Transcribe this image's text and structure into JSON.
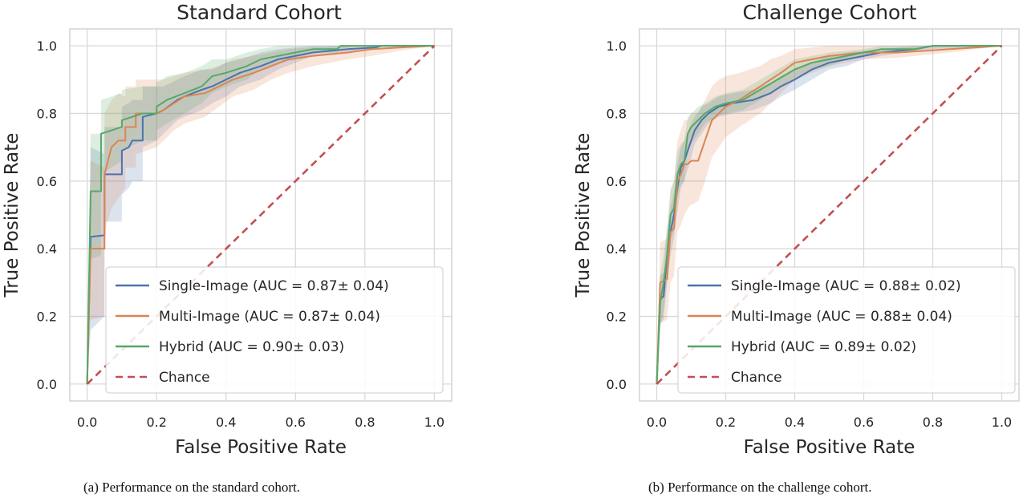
{
  "colors": {
    "single_image": "#4c72b0",
    "multi_image": "#dd8452",
    "hybrid": "#55a868",
    "chance": "#c44e52",
    "grid": "#d9d9d9",
    "frame": "#cccccc"
  },
  "captions": {
    "a": "(a) Performance on the standard cohort.",
    "b": "(b) Performance on the challenge cohort."
  },
  "chart_data": [
    {
      "type": "line",
      "title": "Standard Cohort",
      "xlabel": "False Positive Rate",
      "ylabel": "True Positive Rate",
      "xlim": [
        -0.05,
        1.05
      ],
      "ylim": [
        -0.05,
        1.05
      ],
      "xticks": [
        "0.0",
        "0.2",
        "0.4",
        "0.6",
        "0.8",
        "1.0"
      ],
      "yticks": [
        "0.0",
        "0.2",
        "0.4",
        "0.6",
        "0.8",
        "1.0"
      ],
      "grid": true,
      "legend_position": "lower right",
      "legend": [
        "Single-Image (AUC = 0.87± 0.04)",
        "Multi-Image (AUC = 0.87± 0.04)",
        "Hybrid (AUC = 0.90± 0.03)",
        "Chance"
      ],
      "series": [
        {
          "name": "Single-Image (AUC = 0.87± 0.04)",
          "style": "solid",
          "x": [
            0,
            0.01,
            0.01,
            0.05,
            0.05,
            0.1,
            0.1,
            0.12,
            0.13,
            0.16,
            0.16,
            0.2,
            0.22,
            0.26,
            0.28,
            0.33,
            0.36,
            0.4,
            0.44,
            0.5,
            0.55,
            0.6,
            0.65,
            0.75,
            0.83,
            0.85,
            1.0
          ],
          "y": [
            0,
            0.43,
            0.435,
            0.44,
            0.62,
            0.62,
            0.69,
            0.7,
            0.72,
            0.72,
            0.79,
            0.8,
            0.81,
            0.84,
            0.85,
            0.87,
            0.88,
            0.9,
            0.92,
            0.94,
            0.96,
            0.97,
            0.98,
            0.99,
            0.995,
            1.0,
            1.0
          ],
          "band_lower": [
            0,
            0.16,
            0.16,
            0.2,
            0.48,
            0.48,
            0.56,
            0.58,
            0.6,
            0.6,
            0.7,
            0.72,
            0.74,
            0.78,
            0.79,
            0.81,
            0.83,
            0.85,
            0.88,
            0.9,
            0.93,
            0.95,
            0.97,
            0.98,
            0.99,
            1.0,
            1.0
          ],
          "band_upper": [
            0,
            0.7,
            0.7,
            0.68,
            0.76,
            0.76,
            0.82,
            0.83,
            0.84,
            0.84,
            0.88,
            0.88,
            0.88,
            0.9,
            0.91,
            0.93,
            0.93,
            0.95,
            0.96,
            0.98,
            0.99,
            0.995,
            1.0,
            1.0,
            1.0,
            1.0,
            1.0
          ]
        },
        {
          "name": "Multi-Image (AUC = 0.87± 0.04)",
          "style": "solid",
          "x": [
            0,
            0.01,
            0.01,
            0.05,
            0.05,
            0.07,
            0.09,
            0.11,
            0.11,
            0.14,
            0.14,
            0.2,
            0.22,
            0.25,
            0.28,
            0.34,
            0.38,
            0.42,
            0.48,
            0.53,
            0.58,
            0.65,
            0.75,
            0.82,
            0.9,
            1.0
          ],
          "y": [
            0,
            0.4,
            0.4,
            0.4,
            0.62,
            0.7,
            0.72,
            0.72,
            0.76,
            0.76,
            0.8,
            0.8,
            0.81,
            0.83,
            0.85,
            0.86,
            0.88,
            0.9,
            0.92,
            0.94,
            0.96,
            0.97,
            0.98,
            0.99,
            0.995,
            1.0
          ],
          "band_lower": [
            0,
            0.19,
            0.19,
            0.2,
            0.45,
            0.52,
            0.55,
            0.58,
            0.64,
            0.64,
            0.68,
            0.7,
            0.72,
            0.75,
            0.77,
            0.79,
            0.82,
            0.85,
            0.87,
            0.9,
            0.92,
            0.94,
            0.96,
            0.97,
            0.985,
            1.0
          ],
          "band_upper": [
            0,
            0.66,
            0.66,
            0.64,
            0.8,
            0.84,
            0.86,
            0.85,
            0.88,
            0.88,
            0.9,
            0.9,
            0.9,
            0.91,
            0.92,
            0.93,
            0.94,
            0.96,
            0.97,
            0.98,
            0.99,
            0.995,
            1.0,
            1.0,
            1.0,
            1.0
          ]
        },
        {
          "name": "Hybrid (AUC = 0.90± 0.03)",
          "style": "solid",
          "x": [
            0,
            0.01,
            0.01,
            0.04,
            0.04,
            0.07,
            0.1,
            0.1,
            0.16,
            0.2,
            0.2,
            0.23,
            0.28,
            0.33,
            0.36,
            0.4,
            0.46,
            0.5,
            0.55,
            0.6,
            0.65,
            0.72,
            0.73,
            0.78,
            1.0
          ],
          "y": [
            0,
            0.57,
            0.57,
            0.57,
            0.74,
            0.75,
            0.76,
            0.78,
            0.8,
            0.8,
            0.82,
            0.84,
            0.86,
            0.88,
            0.91,
            0.92,
            0.94,
            0.96,
            0.97,
            0.98,
            0.99,
            0.99,
            1.0,
            1.0,
            1.0
          ],
          "band_lower": [
            0,
            0.37,
            0.37,
            0.38,
            0.62,
            0.64,
            0.66,
            0.69,
            0.72,
            0.72,
            0.75,
            0.77,
            0.8,
            0.83,
            0.86,
            0.88,
            0.9,
            0.93,
            0.95,
            0.96,
            0.98,
            0.98,
            0.99,
            1.0,
            1.0
          ],
          "band_upper": [
            0,
            0.74,
            0.74,
            0.74,
            0.84,
            0.85,
            0.86,
            0.87,
            0.88,
            0.88,
            0.89,
            0.91,
            0.92,
            0.94,
            0.96,
            0.96,
            0.98,
            0.99,
            1.0,
            1.0,
            1.0,
            1.0,
            1.0,
            1.0,
            1.0
          ]
        },
        {
          "name": "Chance",
          "style": "dashed",
          "x": [
            0,
            1
          ],
          "y": [
            0,
            1
          ]
        }
      ]
    },
    {
      "type": "line",
      "title": "Challenge Cohort",
      "xlabel": "False Positive Rate",
      "ylabel": "True Positive Rate",
      "xlim": [
        -0.05,
        1.05
      ],
      "ylim": [
        -0.05,
        1.05
      ],
      "xticks": [
        "0.0",
        "0.2",
        "0.4",
        "0.6",
        "0.8",
        "1.0"
      ],
      "yticks": [
        "0.0",
        "0.2",
        "0.4",
        "0.6",
        "0.8",
        "1.0"
      ],
      "grid": true,
      "legend_position": "lower right",
      "legend": [
        "Single-Image (AUC = 0.88± 0.02)",
        "Multi-Image (AUC = 0.88± 0.04)",
        "Hybrid (AUC = 0.89± 0.02)",
        "Chance"
      ],
      "series": [
        {
          "name": "Single-Image (AUC = 0.88± 0.02)",
          "style": "solid",
          "x": [
            0,
            0.01,
            0.02,
            0.03,
            0.04,
            0.05,
            0.06,
            0.07,
            0.08,
            0.1,
            0.11,
            0.13,
            0.15,
            0.18,
            0.22,
            0.28,
            0.33,
            0.36,
            0.4,
            0.45,
            0.5,
            0.55,
            0.6,
            0.65,
            0.75,
            0.8,
            1.0
          ],
          "y": [
            0,
            0.25,
            0.26,
            0.38,
            0.45,
            0.5,
            0.58,
            0.64,
            0.66,
            0.72,
            0.75,
            0.78,
            0.8,
            0.82,
            0.83,
            0.84,
            0.86,
            0.88,
            0.9,
            0.93,
            0.95,
            0.96,
            0.97,
            0.98,
            0.99,
            1.0,
            1.0
          ],
          "band_lower": [
            0,
            0.18,
            0.19,
            0.3,
            0.38,
            0.43,
            0.51,
            0.58,
            0.6,
            0.67,
            0.71,
            0.74,
            0.77,
            0.79,
            0.8,
            0.81,
            0.83,
            0.85,
            0.87,
            0.9,
            0.93,
            0.94,
            0.96,
            0.97,
            0.985,
            0.99,
            1.0
          ],
          "band_upper": [
            0,
            0.32,
            0.33,
            0.46,
            0.52,
            0.57,
            0.65,
            0.7,
            0.72,
            0.77,
            0.79,
            0.82,
            0.83,
            0.85,
            0.86,
            0.87,
            0.89,
            0.91,
            0.93,
            0.95,
            0.97,
            0.98,
            0.985,
            0.99,
            1.0,
            1.0,
            1.0
          ]
        },
        {
          "name": "Multi-Image (AUC = 0.88± 0.04)",
          "style": "solid",
          "x": [
            0,
            0.01,
            0.03,
            0.04,
            0.05,
            0.06,
            0.07,
            0.08,
            0.09,
            0.1,
            0.12,
            0.14,
            0.16,
            0.18,
            0.2,
            0.24,
            0.3,
            0.33,
            0.36,
            0.4,
            0.45,
            0.5,
            0.6,
            0.7,
            0.85,
            1.0
          ],
          "y": [
            0,
            0.3,
            0.31,
            0.45,
            0.46,
            0.6,
            0.62,
            0.65,
            0.65,
            0.66,
            0.66,
            0.72,
            0.78,
            0.8,
            0.82,
            0.84,
            0.88,
            0.9,
            0.92,
            0.95,
            0.96,
            0.97,
            0.98,
            0.98,
            0.99,
            1.0
          ],
          "band_lower": [
            0,
            0.18,
            0.19,
            0.3,
            0.32,
            0.45,
            0.47,
            0.5,
            0.52,
            0.53,
            0.54,
            0.6,
            0.67,
            0.7,
            0.73,
            0.76,
            0.8,
            0.83,
            0.86,
            0.9,
            0.92,
            0.94,
            0.96,
            0.965,
            0.98,
            1.0
          ],
          "band_upper": [
            0,
            0.42,
            0.43,
            0.58,
            0.6,
            0.72,
            0.75,
            0.78,
            0.78,
            0.8,
            0.8,
            0.84,
            0.88,
            0.9,
            0.91,
            0.92,
            0.94,
            0.96,
            0.97,
            0.99,
            0.995,
            1.0,
            1.0,
            1.0,
            1.0,
            1.0
          ]
        },
        {
          "name": "Hybrid (AUC = 0.89± 0.02)",
          "style": "solid",
          "x": [
            0,
            0.01,
            0.02,
            0.03,
            0.04,
            0.05,
            0.06,
            0.07,
            0.08,
            0.09,
            0.1,
            0.12,
            0.14,
            0.17,
            0.2,
            0.25,
            0.3,
            0.35,
            0.4,
            0.45,
            0.5,
            0.55,
            0.6,
            0.65,
            0.75,
            0.8,
            1.0
          ],
          "y": [
            0,
            0.24,
            0.3,
            0.38,
            0.5,
            0.52,
            0.62,
            0.65,
            0.66,
            0.74,
            0.76,
            0.78,
            0.8,
            0.82,
            0.83,
            0.84,
            0.87,
            0.9,
            0.93,
            0.95,
            0.96,
            0.97,
            0.98,
            0.99,
            0.99,
            1.0,
            1.0
          ],
          "band_lower": [
            0,
            0.16,
            0.22,
            0.3,
            0.43,
            0.45,
            0.55,
            0.59,
            0.6,
            0.69,
            0.71,
            0.74,
            0.77,
            0.79,
            0.8,
            0.81,
            0.84,
            0.87,
            0.9,
            0.93,
            0.94,
            0.96,
            0.97,
            0.98,
            0.985,
            1.0,
            1.0
          ],
          "band_upper": [
            0,
            0.32,
            0.38,
            0.46,
            0.57,
            0.6,
            0.69,
            0.71,
            0.72,
            0.79,
            0.8,
            0.82,
            0.83,
            0.85,
            0.86,
            0.87,
            0.9,
            0.93,
            0.96,
            0.97,
            0.98,
            0.985,
            0.99,
            1.0,
            1.0,
            1.0,
            1.0
          ]
        },
        {
          "name": "Chance",
          "style": "dashed",
          "x": [
            0,
            1
          ],
          "y": [
            0,
            1
          ]
        }
      ]
    }
  ]
}
